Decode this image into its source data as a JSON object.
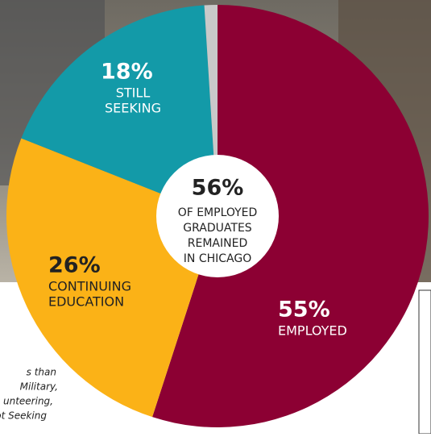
{
  "chart_data": {
    "type": "pie",
    "categories": [
      [
        "EMPLOYED"
      ],
      [
        "CONTINUING",
        "EDUCATION"
      ],
      [
        "STILL",
        "SEEKING"
      ],
      null
    ],
    "values": [
      55,
      26,
      18,
      1
    ],
    "value_labels": [
      "55%",
      "26%",
      "18%",
      null
    ],
    "colors": [
      "#8c0033",
      "#fbb217",
      "#139aa8",
      "#c9c9c9"
    ],
    "center_label": "56%",
    "center_text": [
      "OF EMPLOYED",
      "GRADUATES",
      "REMAINED",
      "IN CHICAGO"
    ],
    "note": [
      "s than",
      "Military,",
      "unteering,",
      "Not Seeking"
    ]
  }
}
